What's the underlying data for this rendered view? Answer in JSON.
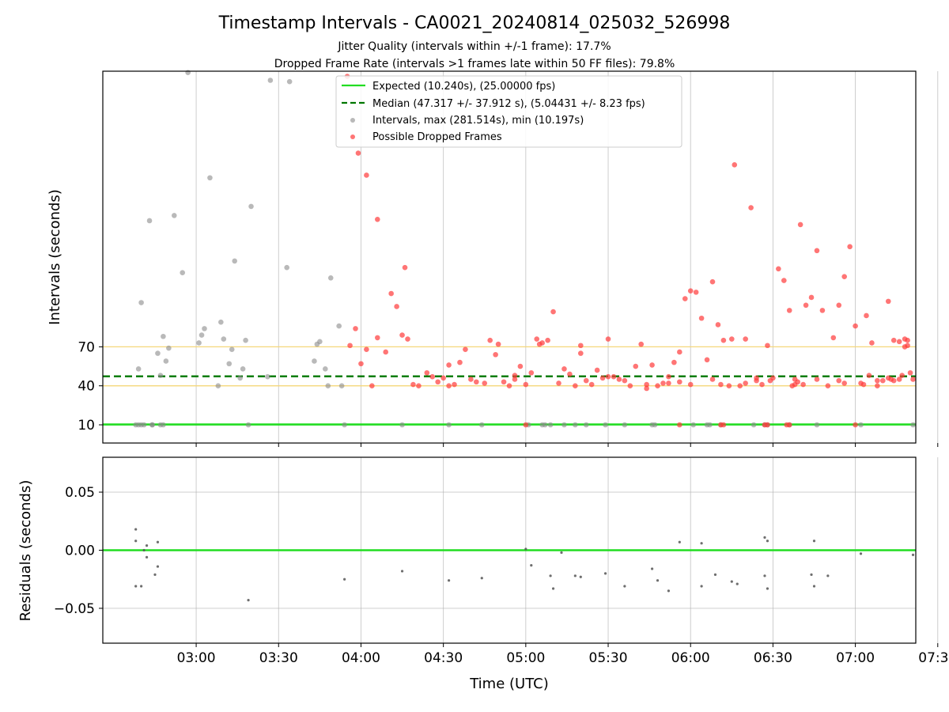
{
  "chart_data": {
    "type": "scatter",
    "title": "Timestamp Intervals - CA0021_20240814_025032_526998",
    "subtitles": [
      "Jitter Quality (intervals within +/-1 frame): 17.7%",
      "Dropped Frame Rate (intervals >1 frames late within 50 FF files): 79.8%"
    ],
    "xlabel": "Time (UTC)",
    "x_ticks": [
      "03:00",
      "03:30",
      "04:00",
      "04:30",
      "05:00",
      "05:30",
      "06:00",
      "06:30",
      "07:00",
      "07:30"
    ],
    "x_range_minutes": [
      146,
      442
    ],
    "top": {
      "ylabel": "Intervals (seconds)",
      "y_ticks": [
        10,
        40,
        70
      ],
      "ylim": [
        -4,
        282
      ],
      "reference_lines": [
        {
          "y": 10.24,
          "style": "solid",
          "color": "#22dd22",
          "legend": "Expected (10.240s), (25.00000 fps)"
        },
        {
          "y": 47.317,
          "style": "dashed",
          "color": "#007700",
          "legend": "Median (47.317 +/- 37.912 s), (5.04431 +/- 8.23 fps)"
        },
        {
          "y": 40,
          "style": "solid",
          "color": "#f5d77a"
        },
        {
          "y": 70,
          "style": "solid",
          "color": "#f5d77a"
        }
      ],
      "series": [
        {
          "name": "Intervals, max (281.514s), min (10.197s)",
          "color": "#8a8a8a",
          "points": [
            [
              158,
              10
            ],
            [
              159,
              10
            ],
            [
              160,
              10
            ],
            [
              161,
              10
            ],
            [
              164,
              10
            ],
            [
              167,
              10
            ],
            [
              168,
              10
            ],
            [
              159,
              53
            ],
            [
              160,
              104
            ],
            [
              163,
              167
            ],
            [
              164,
              10
            ],
            [
              166,
              65
            ],
            [
              167,
              48
            ],
            [
              168,
              78
            ],
            [
              169,
              59
            ],
            [
              170,
              69
            ],
            [
              172,
              171
            ],
            [
              175,
              127
            ],
            [
              177,
              281
            ],
            [
              181,
              73
            ],
            [
              182,
              79
            ],
            [
              183,
              84
            ],
            [
              185,
              200
            ],
            [
              188,
              40
            ],
            [
              189,
              89
            ],
            [
              190,
              76
            ],
            [
              192,
              57
            ],
            [
              193,
              68
            ],
            [
              194,
              136
            ],
            [
              196,
              46
            ],
            [
              197,
              53
            ],
            [
              198,
              75
            ],
            [
              199,
              10
            ],
            [
              200,
              178
            ],
            [
              206,
              47
            ],
            [
              207,
              275
            ],
            [
              213,
              131
            ],
            [
              214,
              274
            ],
            [
              223,
              59
            ],
            [
              224,
              72
            ],
            [
              225,
              74
            ],
            [
              227,
              53
            ],
            [
              228,
              40
            ],
            [
              229,
              123
            ],
            [
              232,
              86
            ],
            [
              233,
              40
            ],
            [
              234,
              10
            ],
            [
              255,
              10
            ],
            [
              272,
              10
            ],
            [
              284,
              10
            ],
            [
              301,
              10
            ],
            [
              306,
              10
            ],
            [
              307,
              10
            ],
            [
              309,
              10
            ],
            [
              314,
              10
            ],
            [
              318,
              10
            ],
            [
              322,
              10
            ],
            [
              329,
              10
            ],
            [
              336,
              10
            ],
            [
              346,
              10
            ],
            [
              347,
              10
            ],
            [
              361,
              10
            ],
            [
              366,
              10
            ],
            [
              367,
              10
            ],
            [
              371,
              10
            ],
            [
              383,
              10
            ],
            [
              387,
              10
            ],
            [
              388,
              10
            ],
            [
              396,
              10
            ],
            [
              406,
              10
            ],
            [
              422,
              10
            ],
            [
              441,
              10
            ]
          ]
        },
        {
          "name": "Possible Dropped Frames",
          "color": "#ff3b3b",
          "points": [
            [
              235,
              278
            ],
            [
              239,
              219
            ],
            [
              242,
              202
            ],
            [
              246,
              168
            ],
            [
              256,
              131
            ],
            [
              272,
              40
            ],
            [
              296,
              48
            ],
            [
              300,
              10
            ],
            [
              356,
              10
            ],
            [
              371,
              10
            ],
            [
              372,
              10
            ],
            [
              387,
              10
            ],
            [
              388,
              10
            ],
            [
              395,
              10
            ],
            [
              396,
              10
            ],
            [
              420,
              10
            ],
            [
              236,
              71
            ],
            [
              238,
              84
            ],
            [
              240,
              57
            ],
            [
              242,
              68
            ],
            [
              244,
              40
            ],
            [
              246,
              77
            ],
            [
              249,
              66
            ],
            [
              251,
              111
            ],
            [
              253,
              101
            ],
            [
              255,
              79
            ],
            [
              257,
              76
            ],
            [
              259,
              41
            ],
            [
              261,
              40
            ],
            [
              264,
              50
            ],
            [
              266,
              47
            ],
            [
              268,
              43
            ],
            [
              270,
              46
            ],
            [
              272,
              56
            ],
            [
              274,
              41
            ],
            [
              276,
              58
            ],
            [
              278,
              68
            ],
            [
              280,
              45
            ],
            [
              282,
              43
            ],
            [
              285,
              42
            ],
            [
              287,
              75
            ],
            [
              289,
              64
            ],
            [
              290,
              72
            ],
            [
              292,
              43
            ],
            [
              294,
              40
            ],
            [
              296,
              45
            ],
            [
              298,
              55
            ],
            [
              300,
              41
            ],
            [
              302,
              50
            ],
            [
              304,
              76
            ],
            [
              306,
              73
            ],
            [
              308,
              75
            ],
            [
              310,
              97
            ],
            [
              312,
              42
            ],
            [
              314,
              53
            ],
            [
              316,
              49
            ],
            [
              318,
              40
            ],
            [
              320,
              71
            ],
            [
              322,
              44
            ],
            [
              324,
              41
            ],
            [
              326,
              52
            ],
            [
              328,
              46
            ],
            [
              330,
              47
            ],
            [
              332,
              47
            ],
            [
              334,
              45
            ],
            [
              336,
              44
            ],
            [
              338,
              40
            ],
            [
              340,
              55
            ],
            [
              342,
              72
            ],
            [
              344,
              38
            ],
            [
              346,
              56
            ],
            [
              348,
              40
            ],
            [
              350,
              42
            ],
            [
              352,
              47
            ],
            [
              354,
              58
            ],
            [
              356,
              66
            ],
            [
              358,
              107
            ],
            [
              360,
              113
            ],
            [
              362,
              112
            ],
            [
              364,
              92
            ],
            [
              366,
              60
            ],
            [
              368,
              120
            ],
            [
              370,
              87
            ],
            [
              372,
              75
            ],
            [
              374,
              40
            ],
            [
              376,
              210
            ],
            [
              378,
              40
            ],
            [
              380,
              76
            ],
            [
              382,
              177
            ],
            [
              384,
              44
            ],
            [
              386,
              41
            ],
            [
              388,
              71
            ],
            [
              390,
              46
            ],
            [
              392,
              130
            ],
            [
              394,
              121
            ],
            [
              396,
              98
            ],
            [
              398,
              45
            ],
            [
              400,
              164
            ],
            [
              402,
              102
            ],
            [
              404,
              108
            ],
            [
              406,
              144
            ],
            [
              408,
              98
            ],
            [
              410,
              40
            ],
            [
              412,
              77
            ],
            [
              414,
              102
            ],
            [
              416,
              124
            ],
            [
              418,
              147
            ],
            [
              420,
              86
            ],
            [
              422,
              42
            ],
            [
              424,
              94
            ],
            [
              426,
              73
            ],
            [
              428,
              40
            ],
            [
              430,
              44
            ],
            [
              432,
              46
            ],
            [
              434,
              44
            ],
            [
              436,
              45
            ],
            [
              438,
              70
            ],
            [
              440,
              50
            ],
            [
              305,
              72
            ],
            [
              320,
              65
            ],
            [
              330,
              76
            ],
            [
              344,
              41
            ],
            [
              352,
              42
            ],
            [
              356,
              43
            ],
            [
              360,
              41
            ],
            [
              368,
              45
            ],
            [
              375,
              76
            ],
            [
              384,
              46
            ],
            [
              398,
              41
            ],
            [
              414,
              44
            ],
            [
              425,
              48
            ],
            [
              432,
              105
            ],
            [
              434,
              75
            ],
            [
              436,
              74
            ],
            [
              438,
              76
            ],
            [
              439,
              71
            ],
            [
              441,
              45
            ],
            [
              371,
              41
            ],
            [
              380,
              42
            ],
            [
              389,
              44
            ],
            [
              397,
              40
            ],
            [
              406,
              45
            ],
            [
              416,
              42
            ],
            [
              423,
              41
            ],
            [
              428,
              44
            ],
            [
              433,
              45
            ],
            [
              437,
              48
            ],
            [
              439,
              75
            ],
            [
              399,
              43
            ],
            [
              401,
              41
            ]
          ]
        }
      ]
    },
    "bottom": {
      "ylabel": "Residuals (seconds)",
      "y_ticks": [
        "0.05",
        "0.00",
        "−0.05"
      ],
      "y_tick_values": [
        0.05,
        0.0,
        -0.05
      ],
      "ylim": [
        -0.08,
        0.08
      ],
      "reference_line": {
        "y": 0.0,
        "color": "#22dd22"
      },
      "points": [
        [
          158,
          0.018
        ],
        [
          158,
          -0.031
        ],
        [
          158,
          0.008
        ],
        [
          160,
          -0.031
        ],
        [
          161,
          0.0
        ],
        [
          162,
          -0.006
        ],
        [
          162,
          0.004
        ],
        [
          165,
          -0.021
        ],
        [
          166,
          -0.014
        ],
        [
          166,
          0.007
        ],
        [
          199,
          -0.043
        ],
        [
          234,
          -0.025
        ],
        [
          255,
          -0.018
        ],
        [
          272,
          -0.026
        ],
        [
          284,
          -0.024
        ],
        [
          300,
          0.001
        ],
        [
          302,
          -0.013
        ],
        [
          309,
          -0.022
        ],
        [
          310,
          -0.033
        ],
        [
          313,
          -0.002
        ],
        [
          318,
          -0.022
        ],
        [
          320,
          -0.023
        ],
        [
          329,
          -0.02
        ],
        [
          336,
          -0.031
        ],
        [
          346,
          -0.016
        ],
        [
          348,
          -0.026
        ],
        [
          352,
          -0.035
        ],
        [
          356,
          0.007
        ],
        [
          364,
          -0.031
        ],
        [
          364,
          0.006
        ],
        [
          369,
          -0.021
        ],
        [
          375,
          -0.027
        ],
        [
          377,
          -0.029
        ],
        [
          387,
          -0.022
        ],
        [
          387,
          0.011
        ],
        [
          388,
          -0.033
        ],
        [
          388,
          0.008
        ],
        [
          404,
          -0.021
        ],
        [
          405,
          -0.031
        ],
        [
          405,
          0.008
        ],
        [
          410,
          -0.022
        ],
        [
          422,
          -0.003
        ],
        [
          441,
          -0.004
        ]
      ]
    },
    "legend": {
      "placement": "top-center",
      "entries": [
        {
          "label": "Expected (10.240s), (25.00000 fps)",
          "kind": "line",
          "color": "#22dd22"
        },
        {
          "label": "Median (47.317 +/- 37.912 s), (5.04431 +/- 8.23 fps)",
          "kind": "dashed",
          "color": "#007700"
        },
        {
          "label": "Intervals, max (281.514s), min (10.197s)",
          "kind": "marker",
          "color": "#8a8a8a"
        },
        {
          "label": "Possible Dropped Frames",
          "kind": "marker",
          "color": "#ff3b3b"
        }
      ]
    },
    "grid": true
  }
}
